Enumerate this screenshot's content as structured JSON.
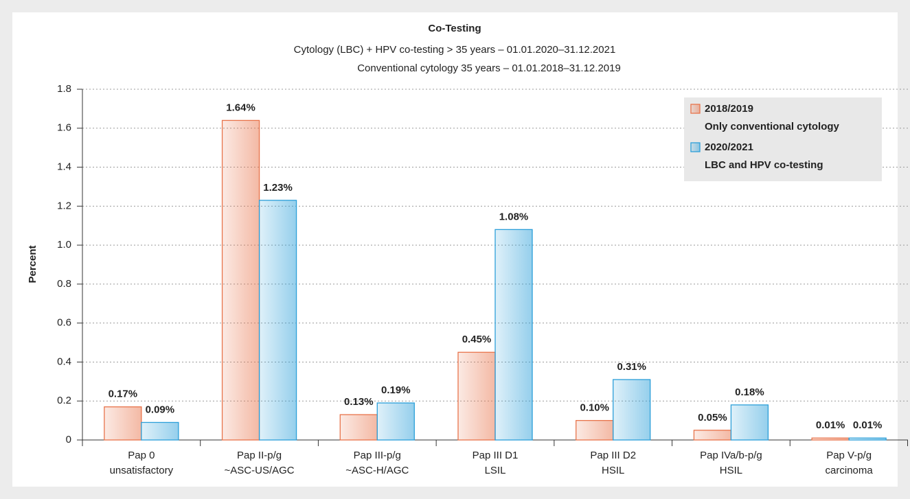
{
  "chart_data": {
    "type": "bar",
    "title": "Co-Testing",
    "subtitle": [
      "Cytology (LBC) + HPV co-testing > 35 years – 01.01.2020–31.12.2021",
      "Conventional cytology 35 years – 01.01.2018–31.12.2019"
    ],
    "y_label": "Percent",
    "categories": [
      [
        "Pap 0",
        "unsatisfactory"
      ],
      [
        "Pap II-p/g",
        "~ASC-US/AGC"
      ],
      [
        "Pap III-p/g",
        "~ASC-H/AGC"
      ],
      [
        "Pap III D1",
        "LSIL"
      ],
      [
        "Pap III D2",
        "HSIL"
      ],
      [
        "Pap IVa/b-p/g",
        "HSIL"
      ],
      [
        "Pap V-p/g",
        "carcinoma"
      ]
    ],
    "series": [
      {
        "name": "2018/2019",
        "label": "Only conventional cytology",
        "color": "#e8734a",
        "values": [
          0.17,
          1.64,
          0.13,
          0.45,
          0.1,
          0.05,
          0.01
        ],
        "value_labels": [
          "0.17%",
          "1.64%",
          "0.13%",
          "0.45%",
          "0.10%",
          "0.05%",
          "0.01%"
        ]
      },
      {
        "name": "2020/2021",
        "label": "LBC and HPV co-testing",
        "color": "#2b9fd9",
        "values": [
          0.09,
          1.23,
          0.19,
          1.08,
          0.31,
          0.18,
          0.01
        ],
        "value_labels": [
          "0.09%",
          "1.23%",
          "0.19%",
          "1.08%",
          "0.31%",
          "0.18%",
          "0.01%"
        ]
      }
    ],
    "ylim": [
      0,
      1.8
    ],
    "yticks": [
      0,
      0.2,
      0.4,
      0.6,
      0.8,
      {
        "value": 1,
        "label": "1.0"
      },
      1.2,
      1.4,
      1.6,
      1.8
    ],
    "grid": true,
    "legend": "upper right"
  }
}
